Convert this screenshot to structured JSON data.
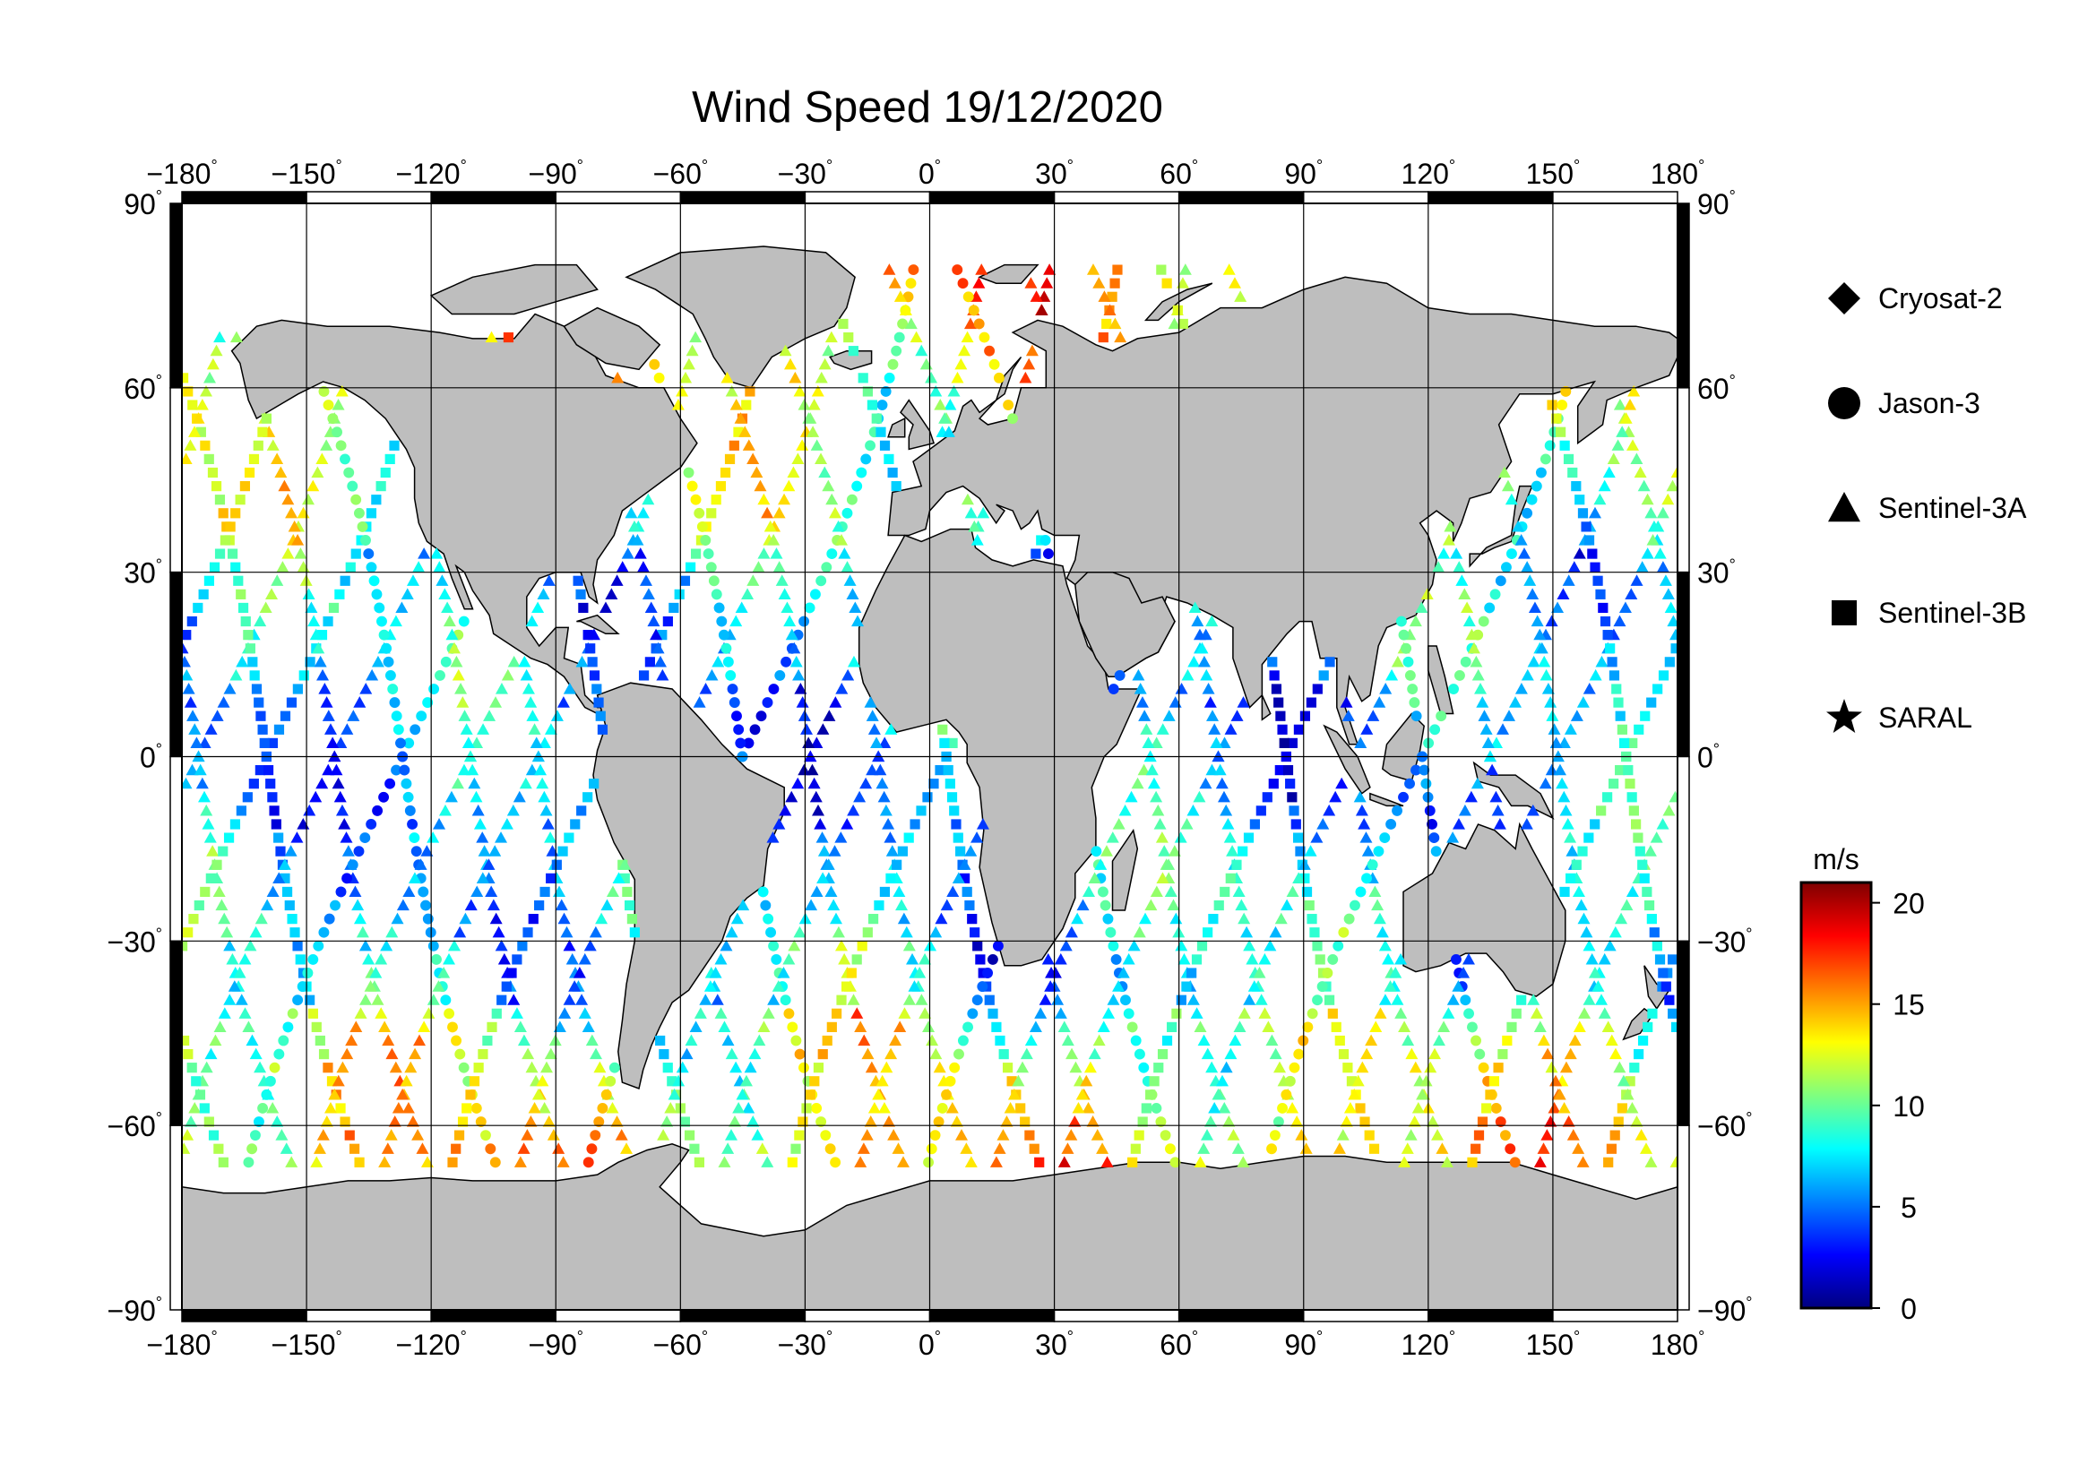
{
  "title": "Wind Speed 19/12/2020",
  "map": {
    "lon_ticks": [
      -180,
      -150,
      -120,
      -90,
      -60,
      -30,
      0,
      30,
      60,
      90,
      120,
      150,
      180
    ],
    "lat_ticks": [
      90,
      60,
      30,
      0,
      -30,
      -60,
      -90
    ],
    "lon_range": [
      -180,
      180
    ],
    "lat_range": [
      -90,
      90
    ],
    "degree_symbol": "°",
    "land_color": "#bebebe",
    "ocean_color": "#ffffff",
    "grid": true
  },
  "legend": {
    "placement": "right",
    "items": [
      {
        "label": "Cryosat-2",
        "marker": "diamond-icon"
      },
      {
        "label": "Jason-3",
        "marker": "circle-icon"
      },
      {
        "label": "Sentinel-3A",
        "marker": "triangle-icon"
      },
      {
        "label": "Sentinel-3B",
        "marker": "square-icon"
      },
      {
        "label": "SARAL",
        "marker": "star-icon"
      }
    ]
  },
  "colorbar": {
    "unit": "m/s",
    "min": 0,
    "max": 21,
    "ticks": [
      20,
      15,
      10,
      5,
      0
    ],
    "colors": [
      "#00007f",
      "#0000ff",
      "#007fff",
      "#00ffff",
      "#7fff7f",
      "#ffff00",
      "#ff7f00",
      "#ff0000",
      "#7f0000"
    ]
  }
}
